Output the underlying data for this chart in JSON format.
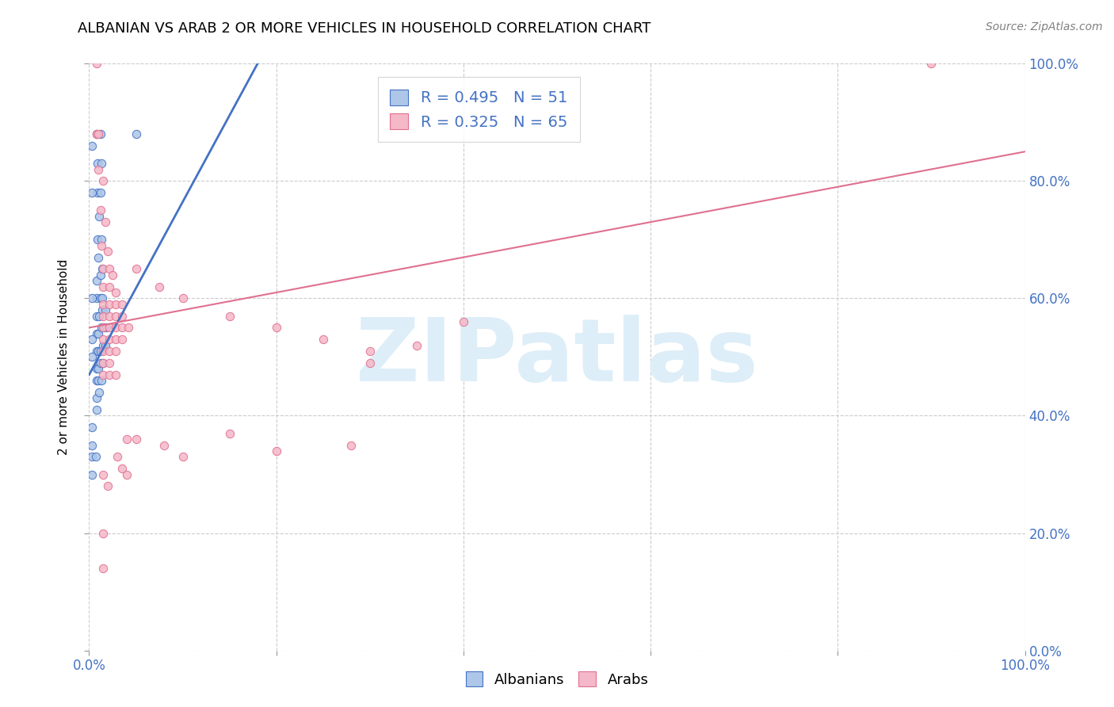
{
  "title": "ALBANIAN VS ARAB 2 OR MORE VEHICLES IN HOUSEHOLD CORRELATION CHART",
  "source": "Source: ZipAtlas.com",
  "ylabel": "2 or more Vehicles in Household",
  "xlim": [
    0.0,
    1.0
  ],
  "ylim": [
    0.0,
    1.0
  ],
  "albanian_R": 0.495,
  "albanian_N": 51,
  "arab_R": 0.325,
  "arab_N": 65,
  "albanian_color": "#aec6e8",
  "arab_color": "#f5b8c8",
  "albanian_line_color": "#4472c4",
  "arab_line_color": "#e07090",
  "legend_labels": [
    "Albanians",
    "Arabs"
  ],
  "watermark": "ZIPatlas",
  "watermark_color": "#ddeef8",
  "title_fontsize": 13,
  "source_fontsize": 10,
  "tick_label_color": "#4472c4",
  "grid_color": "#cccccc",
  "marker_size": 55,
  "albanian_scatter": [
    [
      0.008,
      0.88
    ],
    [
      0.012,
      0.88
    ],
    [
      0.009,
      0.83
    ],
    [
      0.013,
      0.83
    ],
    [
      0.009,
      0.78
    ],
    [
      0.012,
      0.78
    ],
    [
      0.011,
      0.74
    ],
    [
      0.009,
      0.7
    ],
    [
      0.013,
      0.7
    ],
    [
      0.01,
      0.67
    ],
    [
      0.008,
      0.63
    ],
    [
      0.012,
      0.64
    ],
    [
      0.014,
      0.65
    ],
    [
      0.008,
      0.6
    ],
    [
      0.012,
      0.6
    ],
    [
      0.014,
      0.6
    ],
    [
      0.008,
      0.57
    ],
    [
      0.011,
      0.57
    ],
    [
      0.014,
      0.58
    ],
    [
      0.017,
      0.58
    ],
    [
      0.008,
      0.54
    ],
    [
      0.01,
      0.54
    ],
    [
      0.013,
      0.55
    ],
    [
      0.016,
      0.55
    ],
    [
      0.018,
      0.55
    ],
    [
      0.008,
      0.51
    ],
    [
      0.01,
      0.51
    ],
    [
      0.012,
      0.51
    ],
    [
      0.015,
      0.52
    ],
    [
      0.017,
      0.52
    ],
    [
      0.008,
      0.48
    ],
    [
      0.01,
      0.48
    ],
    [
      0.012,
      0.49
    ],
    [
      0.015,
      0.49
    ],
    [
      0.008,
      0.46
    ],
    [
      0.01,
      0.46
    ],
    [
      0.013,
      0.46
    ],
    [
      0.008,
      0.43
    ],
    [
      0.011,
      0.44
    ],
    [
      0.008,
      0.41
    ],
    [
      0.003,
      0.38
    ],
    [
      0.003,
      0.33
    ],
    [
      0.007,
      0.33
    ],
    [
      0.003,
      0.3
    ],
    [
      0.003,
      0.53
    ],
    [
      0.003,
      0.5
    ],
    [
      0.05,
      0.88
    ],
    [
      0.003,
      0.86
    ],
    [
      0.003,
      0.78
    ],
    [
      0.003,
      0.6
    ],
    [
      0.003,
      0.35
    ]
  ],
  "arab_scatter": [
    [
      0.008,
      1.0
    ],
    [
      0.9,
      1.0
    ],
    [
      0.008,
      0.88
    ],
    [
      0.01,
      0.88
    ],
    [
      0.01,
      0.82
    ],
    [
      0.015,
      0.8
    ],
    [
      0.012,
      0.75
    ],
    [
      0.017,
      0.73
    ],
    [
      0.013,
      0.69
    ],
    [
      0.02,
      0.68
    ],
    [
      0.015,
      0.65
    ],
    [
      0.022,
      0.65
    ],
    [
      0.025,
      0.64
    ],
    [
      0.015,
      0.62
    ],
    [
      0.022,
      0.62
    ],
    [
      0.028,
      0.61
    ],
    [
      0.015,
      0.59
    ],
    [
      0.022,
      0.59
    ],
    [
      0.028,
      0.59
    ],
    [
      0.035,
      0.59
    ],
    [
      0.015,
      0.57
    ],
    [
      0.022,
      0.57
    ],
    [
      0.028,
      0.57
    ],
    [
      0.035,
      0.57
    ],
    [
      0.015,
      0.55
    ],
    [
      0.022,
      0.55
    ],
    [
      0.028,
      0.55
    ],
    [
      0.035,
      0.55
    ],
    [
      0.042,
      0.55
    ],
    [
      0.015,
      0.53
    ],
    [
      0.022,
      0.53
    ],
    [
      0.028,
      0.53
    ],
    [
      0.035,
      0.53
    ],
    [
      0.015,
      0.51
    ],
    [
      0.022,
      0.51
    ],
    [
      0.028,
      0.51
    ],
    [
      0.015,
      0.49
    ],
    [
      0.022,
      0.49
    ],
    [
      0.015,
      0.47
    ],
    [
      0.022,
      0.47
    ],
    [
      0.028,
      0.47
    ],
    [
      0.05,
      0.65
    ],
    [
      0.075,
      0.62
    ],
    [
      0.1,
      0.6
    ],
    [
      0.15,
      0.57
    ],
    [
      0.2,
      0.55
    ],
    [
      0.25,
      0.53
    ],
    [
      0.3,
      0.51
    ],
    [
      0.3,
      0.49
    ],
    [
      0.35,
      0.52
    ],
    [
      0.4,
      0.56
    ],
    [
      0.015,
      0.3
    ],
    [
      0.02,
      0.28
    ],
    [
      0.03,
      0.33
    ],
    [
      0.035,
      0.31
    ],
    [
      0.05,
      0.36
    ],
    [
      0.08,
      0.35
    ],
    [
      0.1,
      0.33
    ],
    [
      0.15,
      0.37
    ],
    [
      0.2,
      0.34
    ],
    [
      0.28,
      0.35
    ],
    [
      0.015,
      0.2
    ],
    [
      0.015,
      0.14
    ],
    [
      0.04,
      0.3
    ],
    [
      0.04,
      0.36
    ]
  ],
  "alb_line": [
    0.0,
    0.47,
    0.18,
    1.0
  ],
  "arab_line": [
    0.0,
    0.55,
    1.0,
    0.85
  ]
}
